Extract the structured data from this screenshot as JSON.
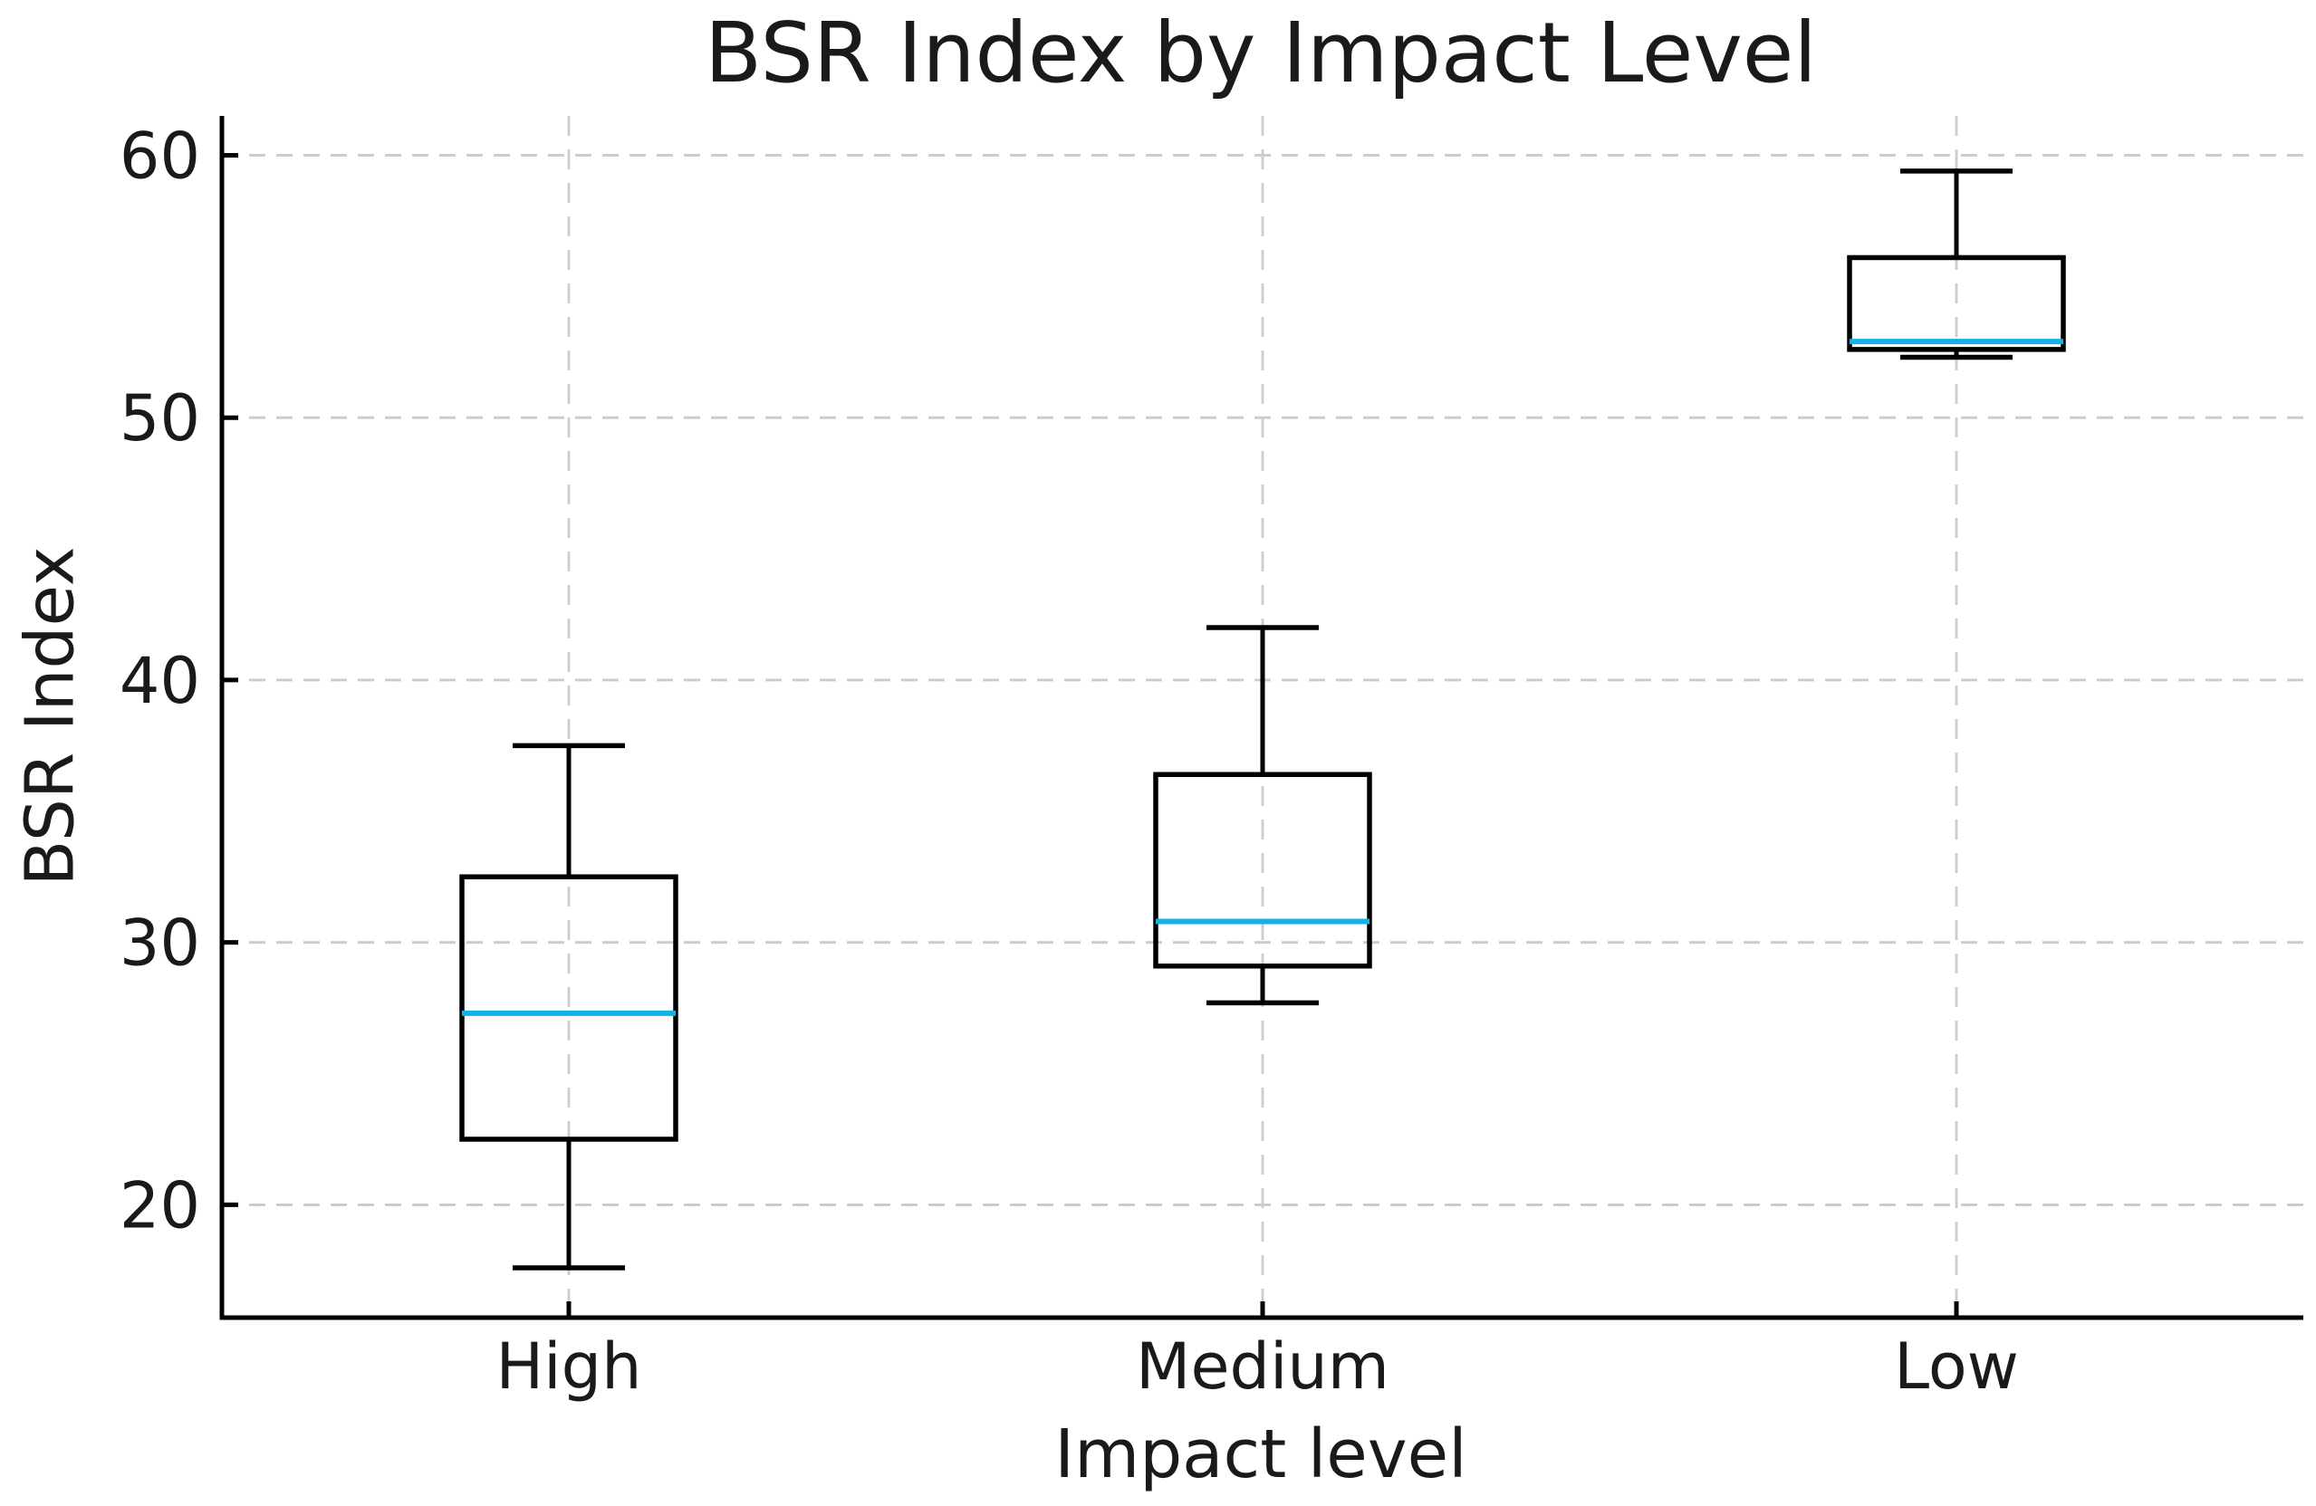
{
  "figure": {
    "background": "#ffffff"
  },
  "chart_data": {
    "type": "box",
    "title": "BSR Index by Impact Level",
    "xlabel": "Impact level",
    "ylabel": "BSR Index",
    "categories": [
      "High",
      "Medium",
      "Low"
    ],
    "series": [
      {
        "category": "High",
        "whisker_low": 17.6,
        "q1": 22.5,
        "median": 27.3,
        "q3": 32.5,
        "whisker_high": 37.5
      },
      {
        "category": "Medium",
        "whisker_low": 27.7,
        "q1": 29.1,
        "median": 30.8,
        "q3": 36.4,
        "whisker_high": 42.0
      },
      {
        "category": "Low",
        "whisker_low": 52.3,
        "q1": 52.6,
        "median": 52.9,
        "q3": 56.1,
        "whisker_high": 59.4
      }
    ],
    "ylim": [
      15.7,
      61.5
    ],
    "yticks": [
      20,
      30,
      40,
      50,
      60
    ],
    "grid": true,
    "grid_style": "dashed",
    "legend": "none",
    "median_color": "#12b2e8",
    "line_color": "#000000",
    "grid_color": "#cccccc",
    "text_color": "#1a1a1a"
  }
}
